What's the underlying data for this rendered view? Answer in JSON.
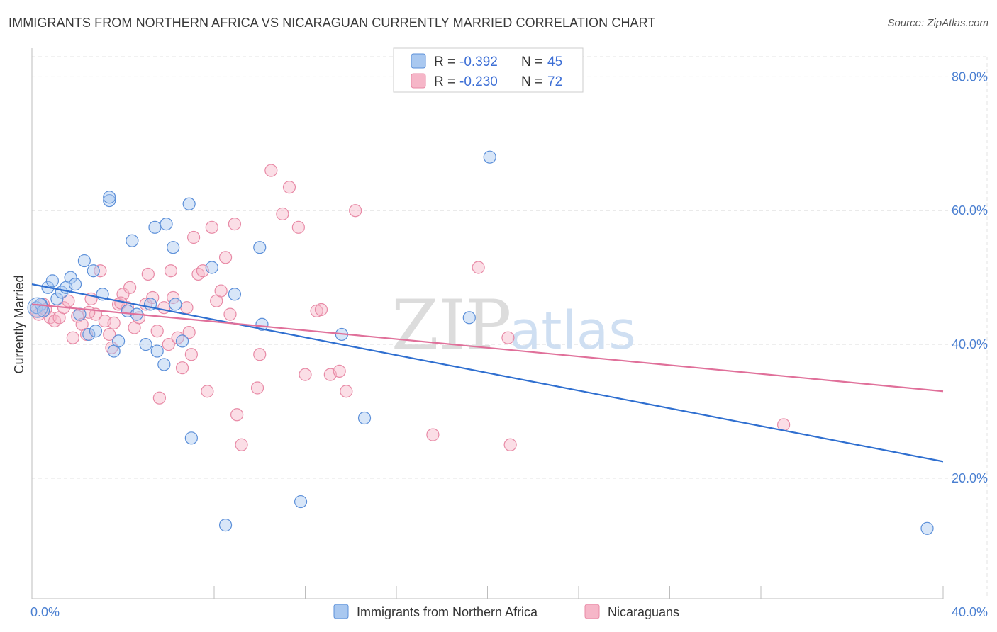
{
  "title": "IMMIGRANTS FROM NORTHERN AFRICA VS NICARAGUAN CURRENTLY MARRIED CORRELATION CHART",
  "source": "Source: ZipAtlas.com",
  "watermark": {
    "zip": "ZIP",
    "atlas": "atlas"
  },
  "colors": {
    "blue_fill": "#a9c8f0",
    "blue_stroke": "#5b8fd9",
    "blue_line": "#2f6fd0",
    "pink_fill": "#f6b6c8",
    "pink_stroke": "#e88aa6",
    "pink_line": "#e0709a",
    "grid": "#e3e3e3",
    "axis_text": "#4a7fd1"
  },
  "legend": {
    "rows": [
      {
        "r_label": "R = ",
        "r_value": "-0.392",
        "n_label": "N = ",
        "n_value": "45"
      },
      {
        "r_label": "R = ",
        "r_value": "-0.230",
        "n_label": "N = ",
        "n_value": "72"
      }
    ]
  },
  "chart_data": {
    "type": "scatter",
    "title": "IMMIGRANTS FROM NORTHERN AFRICA VS NICARAGUAN CURRENTLY MARRIED CORRELATION CHART",
    "xlabel": "",
    "ylabel": "Currently Married",
    "xlim": [
      0,
      40
    ],
    "ylim": [
      2,
      83
    ],
    "x_tick_labels": [
      "0.0%",
      "40.0%"
    ],
    "y_ticks": [
      20,
      40,
      60,
      80
    ],
    "y_tick_labels": [
      "20.0%",
      "40.0%",
      "60.0%",
      "80.0%"
    ],
    "grid": true,
    "legend_position": "top-center",
    "series": [
      {
        "name": "Immigrants from Northern Africa",
        "color": "blue",
        "trend": {
          "x": [
            0,
            40
          ],
          "y": [
            49.0,
            22.5
          ]
        },
        "points": [
          [
            0.2,
            45.5
          ],
          [
            0.4,
            46.0
          ],
          [
            0.5,
            45.0
          ],
          [
            0.7,
            48.5
          ],
          [
            0.9,
            49.5
          ],
          [
            1.1,
            46.8
          ],
          [
            1.3,
            47.8
          ],
          [
            1.5,
            48.5
          ],
          [
            1.7,
            50.0
          ],
          [
            1.9,
            49.0
          ],
          [
            2.1,
            44.5
          ],
          [
            2.3,
            52.5
          ],
          [
            2.5,
            41.5
          ],
          [
            2.7,
            51.0
          ],
          [
            2.8,
            42.0
          ],
          [
            3.1,
            47.5
          ],
          [
            3.4,
            61.5
          ],
          [
            3.4,
            62.0
          ],
          [
            3.6,
            39.0
          ],
          [
            3.8,
            40.5
          ],
          [
            4.2,
            45.0
          ],
          [
            4.4,
            55.5
          ],
          [
            4.6,
            44.5
          ],
          [
            5.0,
            40.0
          ],
          [
            5.2,
            46.0
          ],
          [
            5.4,
            57.5
          ],
          [
            5.5,
            39.0
          ],
          [
            5.8,
            37.0
          ],
          [
            5.9,
            58.0
          ],
          [
            6.2,
            54.5
          ],
          [
            6.3,
            46.0
          ],
          [
            6.6,
            40.5
          ],
          [
            6.9,
            61.0
          ],
          [
            7.0,
            26.0
          ],
          [
            7.9,
            51.5
          ],
          [
            8.5,
            13.0
          ],
          [
            8.9,
            47.5
          ],
          [
            10.0,
            54.5
          ],
          [
            10.1,
            43.0
          ],
          [
            11.8,
            16.5
          ],
          [
            13.6,
            41.5
          ],
          [
            14.6,
            29.0
          ],
          [
            19.2,
            44.0
          ],
          [
            20.1,
            68.0
          ],
          [
            39.3,
            12.5
          ]
        ]
      },
      {
        "name": "Nicaraguans",
        "color": "pink",
        "trend": {
          "x": [
            0,
            40
          ],
          "y": [
            46.0,
            33.0
          ]
        },
        "points": [
          [
            0.2,
            45.0
          ],
          [
            0.3,
            44.5
          ],
          [
            0.5,
            46.0
          ],
          [
            0.6,
            45.2
          ],
          [
            0.8,
            44.0
          ],
          [
            1.0,
            43.5
          ],
          [
            1.2,
            44.0
          ],
          [
            1.4,
            45.5
          ],
          [
            1.6,
            46.5
          ],
          [
            1.8,
            41.0
          ],
          [
            2.0,
            44.2
          ],
          [
            2.2,
            43.0
          ],
          [
            2.4,
            41.5
          ],
          [
            2.6,
            46.8
          ],
          [
            2.8,
            44.5
          ],
          [
            3.0,
            51.0
          ],
          [
            3.2,
            43.5
          ],
          [
            3.4,
            41.5
          ],
          [
            3.5,
            39.5
          ],
          [
            3.6,
            43.2
          ],
          [
            3.8,
            46.0
          ],
          [
            4.0,
            47.5
          ],
          [
            4.2,
            45.5
          ],
          [
            4.3,
            48.5
          ],
          [
            4.5,
            42.5
          ],
          [
            4.7,
            44.0
          ],
          [
            5.0,
            46.0
          ],
          [
            5.1,
            50.5
          ],
          [
            5.3,
            47.0
          ],
          [
            5.5,
            42.0
          ],
          [
            5.6,
            32.0
          ],
          [
            5.8,
            45.5
          ],
          [
            6.0,
            40.0
          ],
          [
            6.1,
            51.0
          ],
          [
            6.2,
            47.0
          ],
          [
            6.4,
            41.0
          ],
          [
            6.6,
            36.5
          ],
          [
            6.8,
            45.5
          ],
          [
            7.0,
            38.5
          ],
          [
            7.1,
            56.0
          ],
          [
            7.3,
            50.5
          ],
          [
            7.5,
            51.0
          ],
          [
            7.7,
            33.0
          ],
          [
            7.9,
            57.5
          ],
          [
            8.1,
            46.5
          ],
          [
            8.3,
            48.0
          ],
          [
            8.5,
            53.0
          ],
          [
            8.7,
            44.5
          ],
          [
            8.9,
            58.0
          ],
          [
            9.0,
            29.5
          ],
          [
            9.2,
            25.0
          ],
          [
            9.9,
            33.5
          ],
          [
            10.0,
            38.5
          ],
          [
            10.5,
            66.0
          ],
          [
            11.0,
            59.5
          ],
          [
            11.3,
            63.5
          ],
          [
            11.7,
            57.5
          ],
          [
            12.0,
            35.5
          ],
          [
            12.5,
            45.0
          ],
          [
            12.7,
            45.2
          ],
          [
            13.1,
            35.5
          ],
          [
            13.5,
            36.0
          ],
          [
            13.8,
            33.0
          ],
          [
            14.2,
            60.0
          ],
          [
            17.6,
            26.5
          ],
          [
            19.6,
            51.5
          ],
          [
            20.9,
            41.0
          ],
          [
            21.0,
            25.0
          ],
          [
            33.0,
            28.0
          ],
          [
            3.9,
            46.2
          ],
          [
            2.5,
            44.8
          ],
          [
            6.9,
            41.8
          ]
        ]
      }
    ]
  }
}
